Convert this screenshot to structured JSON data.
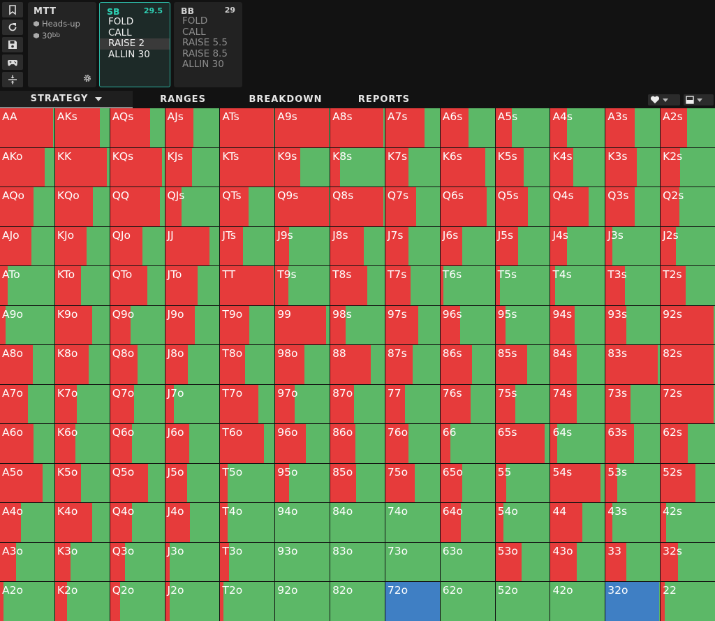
{
  "game": {
    "title": "MTT",
    "format": "Heads-up",
    "stack_value": "30",
    "stack_unit": "bb"
  },
  "positions": [
    {
      "name": "SB",
      "stack": "29.5",
      "actions": [
        "FOLD",
        "CALL",
        "RAISE 2",
        "ALLIN 30"
      ],
      "selected": 2
    },
    {
      "name": "BB",
      "stack": "29",
      "actions": [
        "FOLD",
        "CALL",
        "RAISE 5.5",
        "RAISE 8.5",
        "ALLIN 30"
      ]
    }
  ],
  "tabs": {
    "strategy": "STRATEGY",
    "ranges": "RANGES",
    "breakdown": "BREAKDOWN",
    "reports": "REPORTS"
  },
  "colors": {
    "fold": "#5cb867",
    "raise": "#e63b3b",
    "call": "#3f7fc4",
    "accent": "#2ed0b4"
  },
  "grid": [
    {
      "hand": "AA",
      "raise": 0.98
    },
    {
      "hand": "AKs",
      "raise": 0.82
    },
    {
      "hand": "AQs",
      "raise": 0.74
    },
    {
      "hand": "AJs",
      "raise": 0.52
    },
    {
      "hand": "ATs",
      "raise": 0.98
    },
    {
      "hand": "A9s",
      "raise": 0.98
    },
    {
      "hand": "A8s",
      "raise": 0.98
    },
    {
      "hand": "A7s",
      "raise": 0.72
    },
    {
      "hand": "A6s",
      "raise": 0.52
    },
    {
      "hand": "A5s",
      "raise": 0.3
    },
    {
      "hand": "A4s",
      "raise": 0.3
    },
    {
      "hand": "A3s",
      "raise": 0.54
    },
    {
      "hand": "A2s",
      "raise": 0.48
    },
    {
      "hand": "AKo",
      "raise": 0.82
    },
    {
      "hand": "KK",
      "raise": 0.95
    },
    {
      "hand": "KQs",
      "raise": 0.95
    },
    {
      "hand": "KJs",
      "raise": 0.5
    },
    {
      "hand": "KTs",
      "raise": 0.98
    },
    {
      "hand": "K9s",
      "raise": 0.46
    },
    {
      "hand": "K8s",
      "raise": 0.18
    },
    {
      "hand": "K7s",
      "raise": 0.42
    },
    {
      "hand": "K6s",
      "raise": 0.82
    },
    {
      "hand": "K5s",
      "raise": 0.52
    },
    {
      "hand": "K4s",
      "raise": 0.42
    },
    {
      "hand": "K3s",
      "raise": 0.58
    },
    {
      "hand": "K2s",
      "raise": 0.36
    },
    {
      "hand": "AQo",
      "raise": 0.62
    },
    {
      "hand": "KQo",
      "raise": 0.7
    },
    {
      "hand": "QQ",
      "raise": 0.92
    },
    {
      "hand": "QJs",
      "raise": 0.3
    },
    {
      "hand": "QTs",
      "raise": 0.52
    },
    {
      "hand": "Q9s",
      "raise": 0.98
    },
    {
      "hand": "Q8s",
      "raise": 0.98
    },
    {
      "hand": "Q7s",
      "raise": 0.56
    },
    {
      "hand": "Q6s",
      "raise": 0.85
    },
    {
      "hand": "Q5s",
      "raise": 0.6
    },
    {
      "hand": "Q4s",
      "raise": 0.7
    },
    {
      "hand": "Q3s",
      "raise": 0.54
    },
    {
      "hand": "Q2s",
      "raise": 0.34
    },
    {
      "hand": "AJo",
      "raise": 0.58
    },
    {
      "hand": "KJo",
      "raise": 0.58
    },
    {
      "hand": "QJo",
      "raise": 0.6
    },
    {
      "hand": "JJ",
      "raise": 0.82
    },
    {
      "hand": "JTs",
      "raise": 0.42
    },
    {
      "hand": "J9s",
      "raise": 0.26
    },
    {
      "hand": "J8s",
      "raise": 0.62
    },
    {
      "hand": "J7s",
      "raise": 0.42
    },
    {
      "hand": "J6s",
      "raise": 0.4
    },
    {
      "hand": "J5s",
      "raise": 0.42
    },
    {
      "hand": "J4s",
      "raise": 0.3
    },
    {
      "hand": "J3s",
      "raise": 0.12
    },
    {
      "hand": "J2s",
      "raise": 0.28
    },
    {
      "hand": "ATo",
      "raise": 0.14
    },
    {
      "hand": "KTo",
      "raise": 0.48
    },
    {
      "hand": "QTo",
      "raise": 0.68
    },
    {
      "hand": "JTo",
      "raise": 0.6
    },
    {
      "hand": "TT",
      "raise": 0.98
    },
    {
      "hand": "T9s",
      "raise": 0.24
    },
    {
      "hand": "T8s",
      "raise": 0.68
    },
    {
      "hand": "T7s",
      "raise": 0.46
    },
    {
      "hand": "T6s",
      "raise": 0.06
    },
    {
      "hand": "T5s",
      "raise": 0.08
    },
    {
      "hand": "T4s",
      "raise": 0.08
    },
    {
      "hand": "T3s",
      "raise": 0.36
    },
    {
      "hand": "T2s",
      "raise": 0.46
    },
    {
      "hand": "A9o",
      "raise": 0.1
    },
    {
      "hand": "K9o",
      "raise": 0.68
    },
    {
      "hand": "Q9o",
      "raise": 0.38
    },
    {
      "hand": "J9o",
      "raise": 0.54
    },
    {
      "hand": "T9o",
      "raise": 0.54
    },
    {
      "hand": "99",
      "raise": 0.94
    },
    {
      "hand": "98s",
      "raise": 0.28
    },
    {
      "hand": "97s",
      "raise": 0.6
    },
    {
      "hand": "96s",
      "raise": 0.36
    },
    {
      "hand": "95s",
      "raise": 0.18
    },
    {
      "hand": "94s",
      "raise": 0.44
    },
    {
      "hand": "93s",
      "raise": 0.38
    },
    {
      "hand": "92s",
      "raise": 0.98
    },
    {
      "hand": "A8o",
      "raise": 0.6
    },
    {
      "hand": "K8o",
      "raise": 0.62
    },
    {
      "hand": "Q8o",
      "raise": 0.5
    },
    {
      "hand": "J8o",
      "raise": 0.42
    },
    {
      "hand": "T8o",
      "raise": 0.46
    },
    {
      "hand": "98o",
      "raise": 0.54
    },
    {
      "hand": "88",
      "raise": 0.74
    },
    {
      "hand": "87s",
      "raise": 0.5
    },
    {
      "hand": "86s",
      "raise": 0.58
    },
    {
      "hand": "85s",
      "raise": 0.58
    },
    {
      "hand": "84s",
      "raise": 0.48
    },
    {
      "hand": "83s",
      "raise": 0.96
    },
    {
      "hand": "82s",
      "raise": 0.98
    },
    {
      "hand": "A7o",
      "raise": 0.52
    },
    {
      "hand": "K7o",
      "raise": 0.4
    },
    {
      "hand": "Q7o",
      "raise": 0.44
    },
    {
      "hand": "J7o",
      "raise": 0.16
    },
    {
      "hand": "T7o",
      "raise": 0.7
    },
    {
      "hand": "97o",
      "raise": 0.36
    },
    {
      "hand": "87o",
      "raise": 0.44
    },
    {
      "hand": "77",
      "raise": 0.36
    },
    {
      "hand": "76s",
      "raise": 0.56
    },
    {
      "hand": "75s",
      "raise": 0.36
    },
    {
      "hand": "74s",
      "raise": 0.48
    },
    {
      "hand": "73s",
      "raise": 0.46
    },
    {
      "hand": "72s",
      "raise": 0.98
    },
    {
      "hand": "A6o",
      "raise": 0.62
    },
    {
      "hand": "K6o",
      "raise": 0.38
    },
    {
      "hand": "Q6o",
      "raise": 0.4
    },
    {
      "hand": "J6o",
      "raise": 0.44
    },
    {
      "hand": "T6o",
      "raise": 0.8
    },
    {
      "hand": "96o",
      "raise": 0.56
    },
    {
      "hand": "86o",
      "raise": 0.46
    },
    {
      "hand": "76o",
      "raise": 0.42
    },
    {
      "hand": "66",
      "raise": 0.18
    },
    {
      "hand": "65s",
      "raise": 0.9
    },
    {
      "hand": "64s",
      "raise": 0.12
    },
    {
      "hand": "63s",
      "raise": 0.52
    },
    {
      "hand": "62s",
      "raise": 0.5
    },
    {
      "hand": "A5o",
      "raise": 0.78
    },
    {
      "hand": "K5o",
      "raise": 0.48
    },
    {
      "hand": "Q5o",
      "raise": 0.7
    },
    {
      "hand": "J5o",
      "raise": 0.4
    },
    {
      "hand": "T5o",
      "raise": 0.14
    },
    {
      "hand": "95o",
      "raise": 0.26
    },
    {
      "hand": "85o",
      "raise": 0.48
    },
    {
      "hand": "75o",
      "raise": 0.54
    },
    {
      "hand": "65o",
      "raise": 0.4
    },
    {
      "hand": "55",
      "raise": 0.2
    },
    {
      "hand": "54s",
      "raise": 0.92
    },
    {
      "hand": "53s",
      "raise": 0.22
    },
    {
      "hand": "52s",
      "raise": 0.64
    },
    {
      "hand": "A4o",
      "raise": 0.38
    },
    {
      "hand": "K4o",
      "raise": 0.68
    },
    {
      "hand": "Q4o",
      "raise": 0.4
    },
    {
      "hand": "J4o",
      "raise": 0.46
    },
    {
      "hand": "T4o",
      "raise": 0.14
    },
    {
      "hand": "94o",
      "raise": 0
    },
    {
      "hand": "84o",
      "raise": 0
    },
    {
      "hand": "74o",
      "raise": 0
    },
    {
      "hand": "64o",
      "raise": 0.38
    },
    {
      "hand": "54o",
      "raise": 0.14
    },
    {
      "hand": "44",
      "raise": 0.58
    },
    {
      "hand": "43s",
      "raise": 0.12
    },
    {
      "hand": "42s",
      "raise": 0.1
    },
    {
      "hand": "A3o",
      "raise": 0.3
    },
    {
      "hand": "K3o",
      "raise": 0.28
    },
    {
      "hand": "Q3o",
      "raise": 0.28
    },
    {
      "hand": "J3o",
      "raise": 0.08
    },
    {
      "hand": "T3o",
      "raise": 0.16
    },
    {
      "hand": "93o",
      "raise": 0
    },
    {
      "hand": "83o",
      "raise": 0
    },
    {
      "hand": "73o",
      "raise": 0
    },
    {
      "hand": "63o",
      "raise": 0
    },
    {
      "hand": "53o",
      "raise": 0.48
    },
    {
      "hand": "43o",
      "raise": 0.48
    },
    {
      "hand": "33",
      "raise": 0.38
    },
    {
      "hand": "32s",
      "raise": 0.32
    },
    {
      "hand": "A2o",
      "raise": 0.06
    },
    {
      "hand": "K2o",
      "raise": 0.22
    },
    {
      "hand": "Q2o",
      "raise": 0.18
    },
    {
      "hand": "J2o",
      "raise": 0.08
    },
    {
      "hand": "T2o",
      "raise": 0.06
    },
    {
      "hand": "92o",
      "raise": 0
    },
    {
      "hand": "82o",
      "raise": 0
    },
    {
      "hand": "72o",
      "call": 1
    },
    {
      "hand": "62o",
      "raise": 0
    },
    {
      "hand": "52o",
      "raise": 0
    },
    {
      "hand": "42o",
      "raise": 0
    },
    {
      "hand": "32o",
      "call": 0.98
    },
    {
      "hand": "22",
      "raise": 0.08
    }
  ]
}
